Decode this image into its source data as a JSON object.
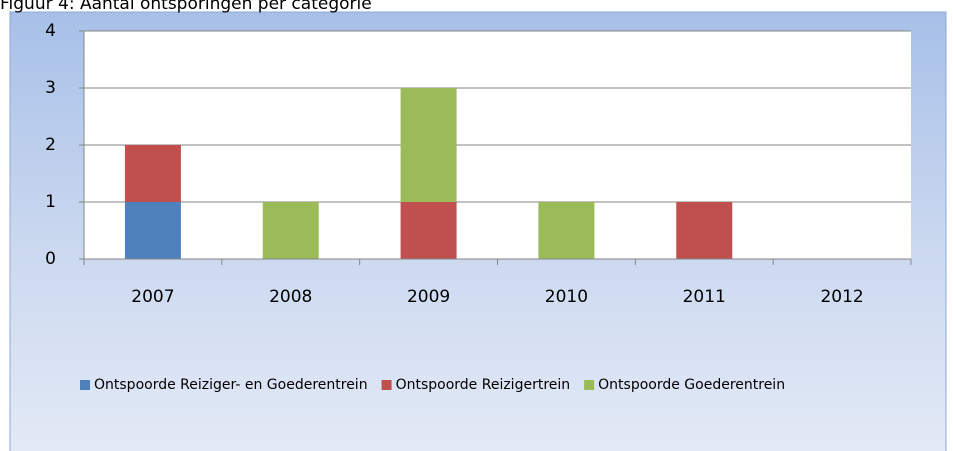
{
  "chart_data": {
    "type": "bar",
    "stacked": true,
    "title": "Figuur 4: Aantal ontsporingen per categorie",
    "categories": [
      "2007",
      "2008",
      "2009",
      "2010",
      "2011",
      "2012"
    ],
    "series": [
      {
        "name": "Ontspoorde Reiziger- en Goederentrein",
        "color": "#4f81bd",
        "values": [
          1,
          0,
          0,
          0,
          0,
          0
        ]
      },
      {
        "name": "Ontspoorde Reizigertrein",
        "color": "#c0504d",
        "values": [
          1,
          0,
          1,
          0,
          1,
          0
        ]
      },
      {
        "name": "Ontspoorde Goederentrein",
        "color": "#9bbb59",
        "values": [
          0,
          1,
          2,
          1,
          0,
          0
        ]
      }
    ],
    "ylim": [
      0,
      4
    ],
    "yticks": [
      0,
      1,
      2,
      3,
      4
    ],
    "grid": true,
    "legend": "bottom"
  }
}
